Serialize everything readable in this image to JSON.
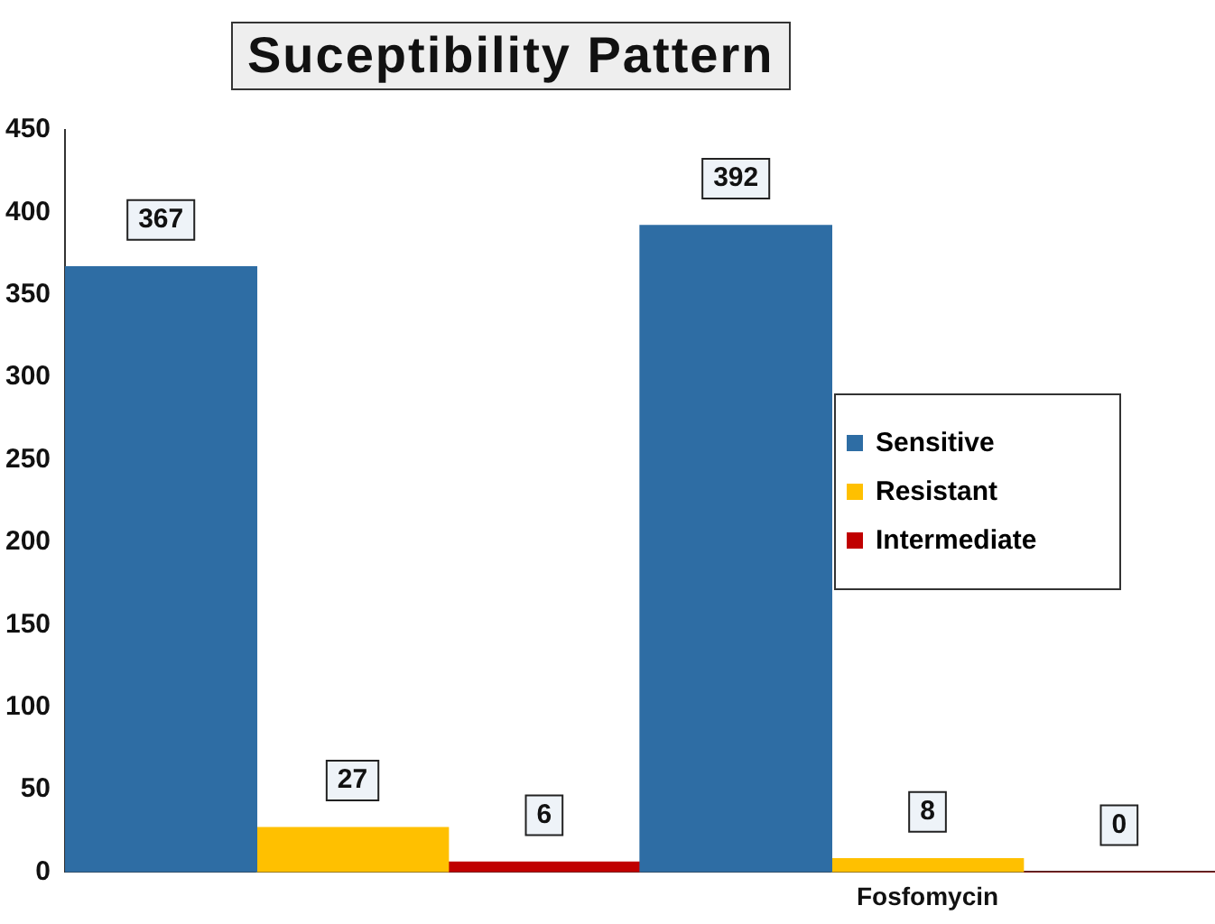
{
  "chart_data": {
    "type": "bar",
    "title": "Suceptibility Pattern",
    "categories": [
      null,
      "Fosfomycin"
    ],
    "series": [
      {
        "name": "Sensitive",
        "color": "#2e6da4",
        "values": [
          367,
          392
        ]
      },
      {
        "name": "Resistant",
        "color": "#ffc000",
        "values": [
          27,
          8
        ]
      },
      {
        "name": "Intermediate",
        "color": "#c00000",
        "values": [
          6,
          0
        ]
      }
    ],
    "ylim": [
      0,
      450
    ],
    "yticks": [
      0,
      50,
      100,
      150,
      200,
      250,
      300,
      350,
      400,
      450
    ],
    "grid": false,
    "legend": "right",
    "data_labels": true
  }
}
